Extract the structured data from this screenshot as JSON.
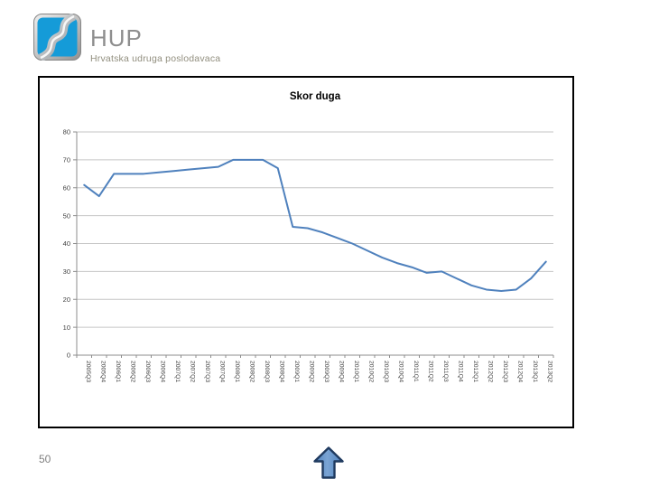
{
  "slide": {
    "page_number": "50",
    "background": "#ffffff"
  },
  "logo": {
    "title": "HUP",
    "subtitle": "Hrvatska udruga poslodavaca",
    "square_color": "#159bd8",
    "frame_color": "#b9b9b9"
  },
  "chart_data": {
    "type": "line",
    "title": "Skor duga",
    "categories": [
      "2005Q3",
      "2005Q4",
      "2006Q1",
      "2006Q2",
      "2006Q3",
      "2006Q4",
      "2007Q1",
      "2007Q2",
      "2007Q3",
      "2007Q4",
      "2008Q1",
      "2008Q2",
      "2008Q3",
      "2008Q4",
      "2009Q1",
      "2009Q2",
      "2009Q3",
      "2009Q4",
      "2010Q1",
      "2010Q2",
      "2010Q3",
      "2010Q4",
      "2011Q1",
      "2011Q2",
      "2011Q3",
      "2011Q4",
      "2012Q1",
      "2012Q2",
      "2012Q3",
      "2012Q4",
      "2013Q1",
      "2013Q2"
    ],
    "values": [
      61,
      57,
      65,
      65,
      65,
      65.5,
      66,
      66.5,
      67,
      67.5,
      70,
      70,
      70,
      67,
      46,
      45.5,
      44,
      42,
      40,
      37.5,
      35,
      33,
      31.5,
      29.5,
      30,
      27.5,
      25,
      23.5,
      23,
      23.5,
      27.5,
      33.5
    ],
    "ylim": [
      0,
      80
    ],
    "ytick_step": 10,
    "grid": true,
    "legend": "none",
    "line_color": "#4f81bd",
    "gridline_color": "#c6c6c6",
    "axis_color": "#8c8c8c",
    "label_color": "#3f3f3f",
    "title_color": "#000000"
  },
  "nav_arrow": {
    "direction": "up",
    "fill": "#4f81bd",
    "highlight": "#7aa4d4",
    "border": "#1f3a5f"
  }
}
